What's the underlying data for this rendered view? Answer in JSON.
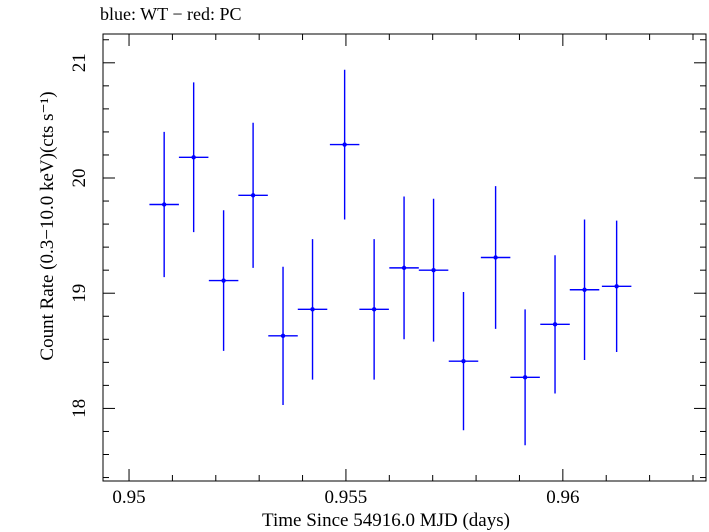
{
  "chart_data": {
    "type": "scatter",
    "title": "blue: WT − red: PC",
    "xlabel": "Time Since 54916.0 MJD (days)",
    "ylabel": "Count Rate (0.3−10.0 keV)(cts s⁻¹)",
    "xlim": [
      0.9494,
      0.9633
    ],
    "ylim": [
      17.37,
      21.25
    ],
    "x_ticks": [
      0.95,
      0.955,
      0.96
    ],
    "x_tick_labels": [
      "0.95",
      "0.955",
      "0.96"
    ],
    "y_ticks": [
      18,
      19,
      20,
      21
    ],
    "y_tick_labels": [
      "18",
      "19",
      "20",
      "21"
    ],
    "grid": false,
    "series": [
      {
        "color": "#0000ff",
        "points": [
          {
            "x": 0.95081,
            "xerr": 0.00034,
            "y": 19.77,
            "yerr": 0.63
          },
          {
            "x": 0.95149,
            "xerr": 0.00034,
            "y": 20.18,
            "yerr": 0.65
          },
          {
            "x": 0.95218,
            "xerr": 0.00034,
            "y": 19.11,
            "yerr": 0.61
          },
          {
            "x": 0.95286,
            "xerr": 0.00034,
            "y": 19.85,
            "yerr": 0.63
          },
          {
            "x": 0.95355,
            "xerr": 0.00034,
            "y": 18.63,
            "yerr": 0.6
          },
          {
            "x": 0.95423,
            "xerr": 0.00034,
            "y": 18.86,
            "yerr": 0.61
          },
          {
            "x": 0.95497,
            "xerr": 0.00034,
            "y": 20.29,
            "yerr": 0.65
          },
          {
            "x": 0.95565,
            "xerr": 0.00034,
            "y": 18.86,
            "yerr": 0.61
          },
          {
            "x": 0.95634,
            "xerr": 0.00034,
            "y": 19.22,
            "yerr": 0.62
          },
          {
            "x": 0.95702,
            "xerr": 0.00034,
            "y": 19.2,
            "yerr": 0.62
          },
          {
            "x": 0.95771,
            "xerr": 0.00034,
            "y": 18.41,
            "yerr": 0.6
          },
          {
            "x": 0.95845,
            "xerr": 0.00034,
            "y": 19.31,
            "yerr": 0.62
          },
          {
            "x": 0.95913,
            "xerr": 0.00034,
            "y": 18.27,
            "yerr": 0.59
          },
          {
            "x": 0.95982,
            "xerr": 0.00034,
            "y": 18.73,
            "yerr": 0.6
          },
          {
            "x": 0.9605,
            "xerr": 0.00034,
            "y": 19.03,
            "yerr": 0.61
          },
          {
            "x": 0.96124,
            "xerr": 0.00034,
            "y": 19.06,
            "yerr": 0.57
          }
        ]
      }
    ]
  }
}
